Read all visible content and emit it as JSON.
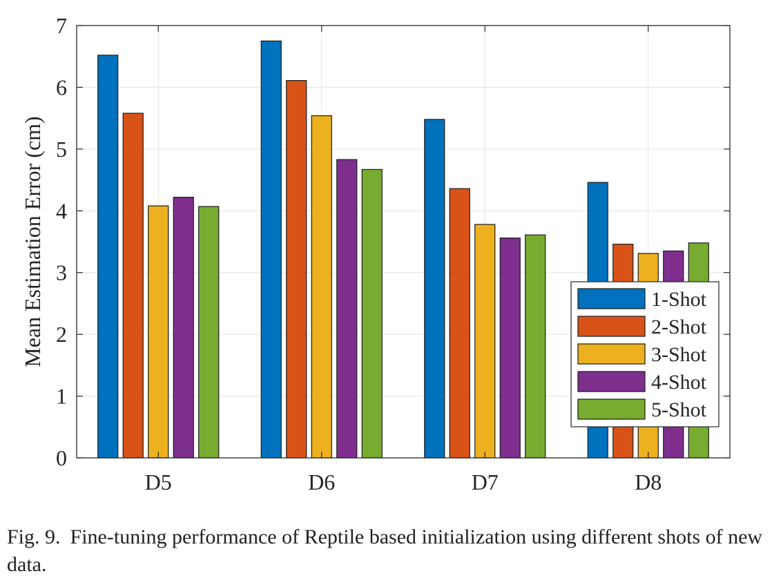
{
  "chart_data": {
    "type": "bar",
    "categories": [
      "D5",
      "D6",
      "D7",
      "D8"
    ],
    "series": [
      {
        "name": "1-Shot",
        "values": [
          6.52,
          6.75,
          5.48,
          4.46
        ]
      },
      {
        "name": "2-Shot",
        "values": [
          5.58,
          6.11,
          4.36,
          3.46
        ]
      },
      {
        "name": "3-Shot",
        "values": [
          4.08,
          5.54,
          3.78,
          3.31
        ]
      },
      {
        "name": "4-Shot",
        "values": [
          4.22,
          4.83,
          3.56,
          3.35
        ]
      },
      {
        "name": "5-Shot",
        "values": [
          4.07,
          4.67,
          3.61,
          3.48
        ]
      }
    ],
    "colors": [
      "#0072BD",
      "#D95319",
      "#EDB120",
      "#7E2F8E",
      "#77AC30"
    ],
    "ylabel": "Mean Estimation Error (cm)",
    "xlabel": "",
    "ylim": [
      0,
      7
    ],
    "yticks": [
      0,
      1,
      2,
      3,
      4,
      5,
      6,
      7
    ],
    "grid": true,
    "legend_position": "bottom-right"
  },
  "caption": {
    "label": "Fig. 9.",
    "text": "Fine-tuning performance of Reptile based initialization using different shots of new data."
  }
}
